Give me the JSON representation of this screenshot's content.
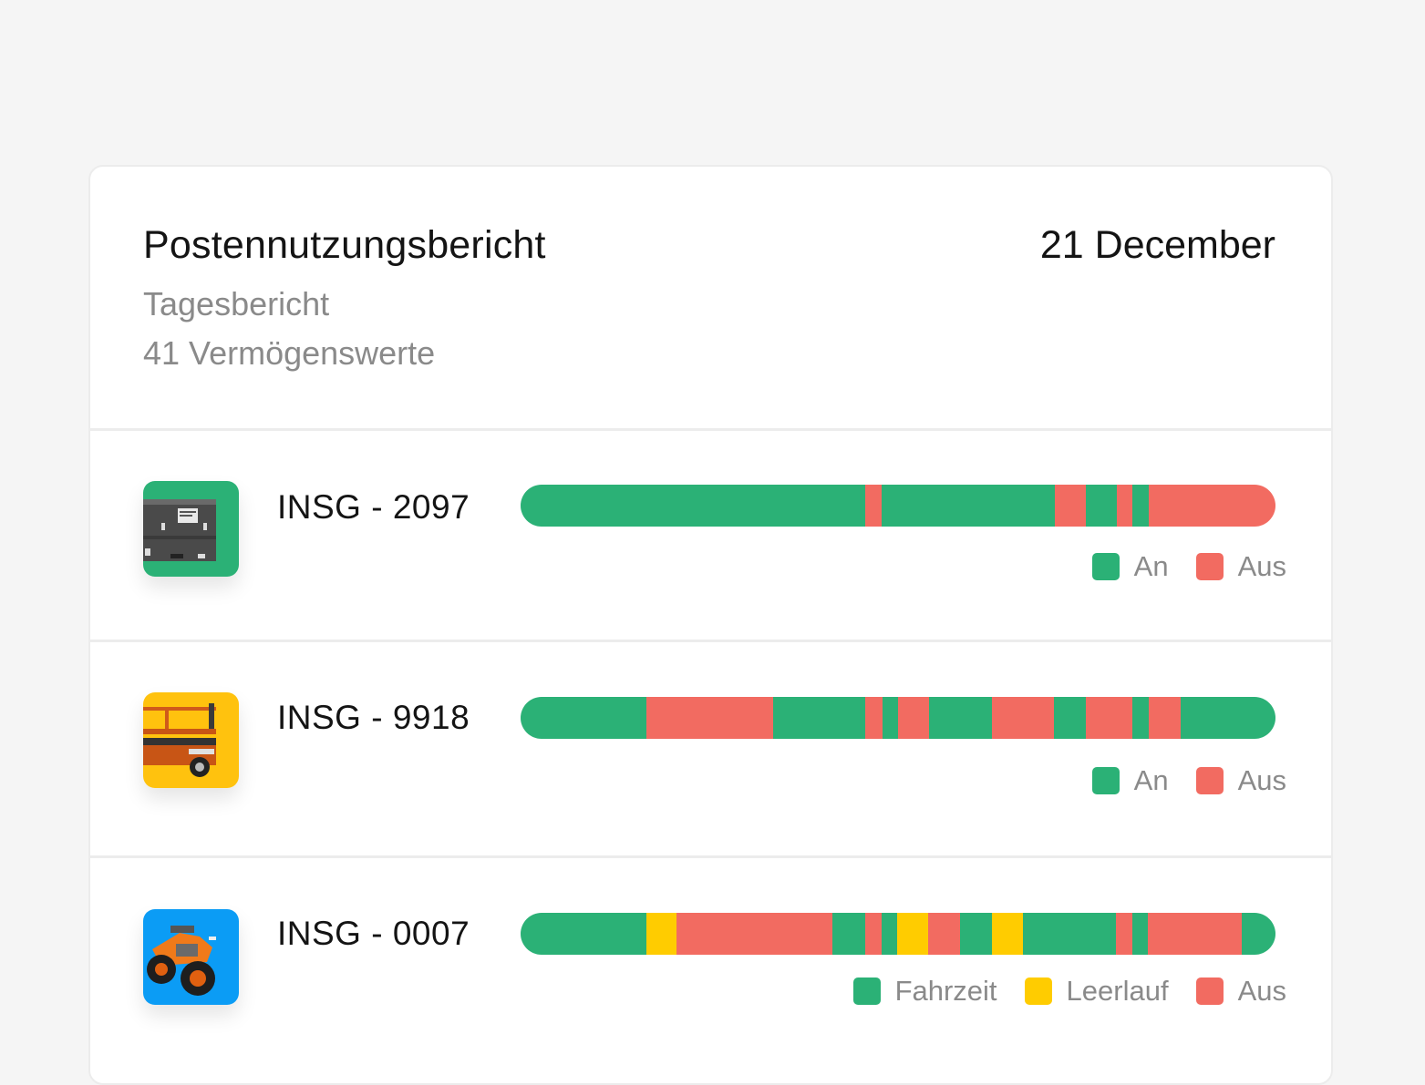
{
  "report": {
    "title": "Postennutzungsbericht",
    "subtitle": "Tagesbericht",
    "asset_count": "41 Vermögenswerte",
    "date": "21 December"
  },
  "colors": {
    "on": "#2bb176",
    "off": "#f26b61",
    "idle": "#ffcc00",
    "divider": "#ececec"
  },
  "assets": [
    {
      "id": "INSG - 2097",
      "icon": "generator-icon",
      "thumb_bg": "#2bb176",
      "legend": [
        {
          "label": "An",
          "state": "on"
        },
        {
          "label": "Aus",
          "state": "off"
        }
      ],
      "timeline": [
        {
          "state": "on",
          "fraction": 0.456
        },
        {
          "state": "off",
          "fraction": 0.022
        },
        {
          "state": "on",
          "fraction": 0.23
        },
        {
          "state": "off",
          "fraction": 0.041
        },
        {
          "state": "on",
          "fraction": 0.041
        },
        {
          "state": "off",
          "fraction": 0.021
        },
        {
          "state": "on",
          "fraction": 0.021
        },
        {
          "state": "off",
          "fraction": 0.168
        }
      ]
    },
    {
      "id": "INSG - 9918",
      "icon": "scissor-lift-icon",
      "thumb_bg": "#ffc20e",
      "legend": [
        {
          "label": "An",
          "state": "on"
        },
        {
          "label": "Aus",
          "state": "off"
        }
      ],
      "timeline": [
        {
          "state": "on",
          "fraction": 0.167
        },
        {
          "state": "off",
          "fraction": 0.167
        },
        {
          "state": "on",
          "fraction": 0.123
        },
        {
          "state": "off",
          "fraction": 0.022
        },
        {
          "state": "on",
          "fraction": 0.021
        },
        {
          "state": "off",
          "fraction": 0.041
        },
        {
          "state": "on",
          "fraction": 0.083
        },
        {
          "state": "off",
          "fraction": 0.083
        },
        {
          "state": "on",
          "fraction": 0.042
        },
        {
          "state": "off",
          "fraction": 0.062
        },
        {
          "state": "on",
          "fraction": 0.021
        },
        {
          "state": "off",
          "fraction": 0.042
        },
        {
          "state": "on",
          "fraction": 0.126
        }
      ]
    },
    {
      "id": "INSG - 0007",
      "icon": "atv-icon",
      "thumb_bg": "#0b9cf5",
      "legend": [
        {
          "label": "Fahrzeit",
          "state": "on"
        },
        {
          "label": "Leerlauf",
          "state": "idle"
        },
        {
          "label": "Aus",
          "state": "off"
        }
      ],
      "timeline": [
        {
          "state": "on",
          "fraction": 0.167
        },
        {
          "state": "idle",
          "fraction": 0.04
        },
        {
          "state": "off",
          "fraction": 0.206
        },
        {
          "state": "on",
          "fraction": 0.043
        },
        {
          "state": "off",
          "fraction": 0.022
        },
        {
          "state": "on",
          "fraction": 0.021
        },
        {
          "state": "idle",
          "fraction": 0.041
        },
        {
          "state": "off",
          "fraction": 0.042
        },
        {
          "state": "on",
          "fraction": 0.042
        },
        {
          "state": "idle",
          "fraction": 0.041
        },
        {
          "state": "on",
          "fraction": 0.124
        },
        {
          "state": "off",
          "fraction": 0.021
        },
        {
          "state": "on",
          "fraction": 0.021
        },
        {
          "state": "off",
          "fraction": 0.125
        },
        {
          "state": "on",
          "fraction": 0.044
        }
      ]
    }
  ]
}
